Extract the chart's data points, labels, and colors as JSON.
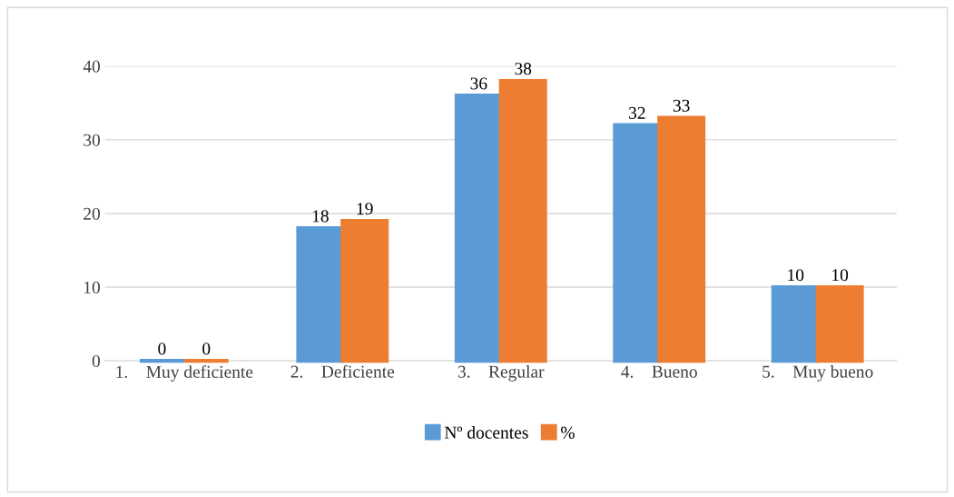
{
  "chart_data": {
    "type": "bar",
    "categories": [
      "1.    Muy deficiente",
      "2.    Deficiente",
      "3.    Regular",
      "4.    Bueno",
      "5.    Muy bueno"
    ],
    "series": [
      {
        "name": "Nº docentes",
        "color": "#5b9bd5",
        "values": [
          0,
          18,
          36,
          32,
          10
        ]
      },
      {
        "name": "%",
        "color": "#ed7d31",
        "values": [
          0,
          19,
          38,
          33,
          10
        ]
      }
    ],
    "ylim": [
      0,
      40
    ],
    "yticks": [
      0,
      10,
      20,
      30,
      40
    ],
    "grid": "y",
    "legend": "bottom",
    "data_labels": true
  }
}
